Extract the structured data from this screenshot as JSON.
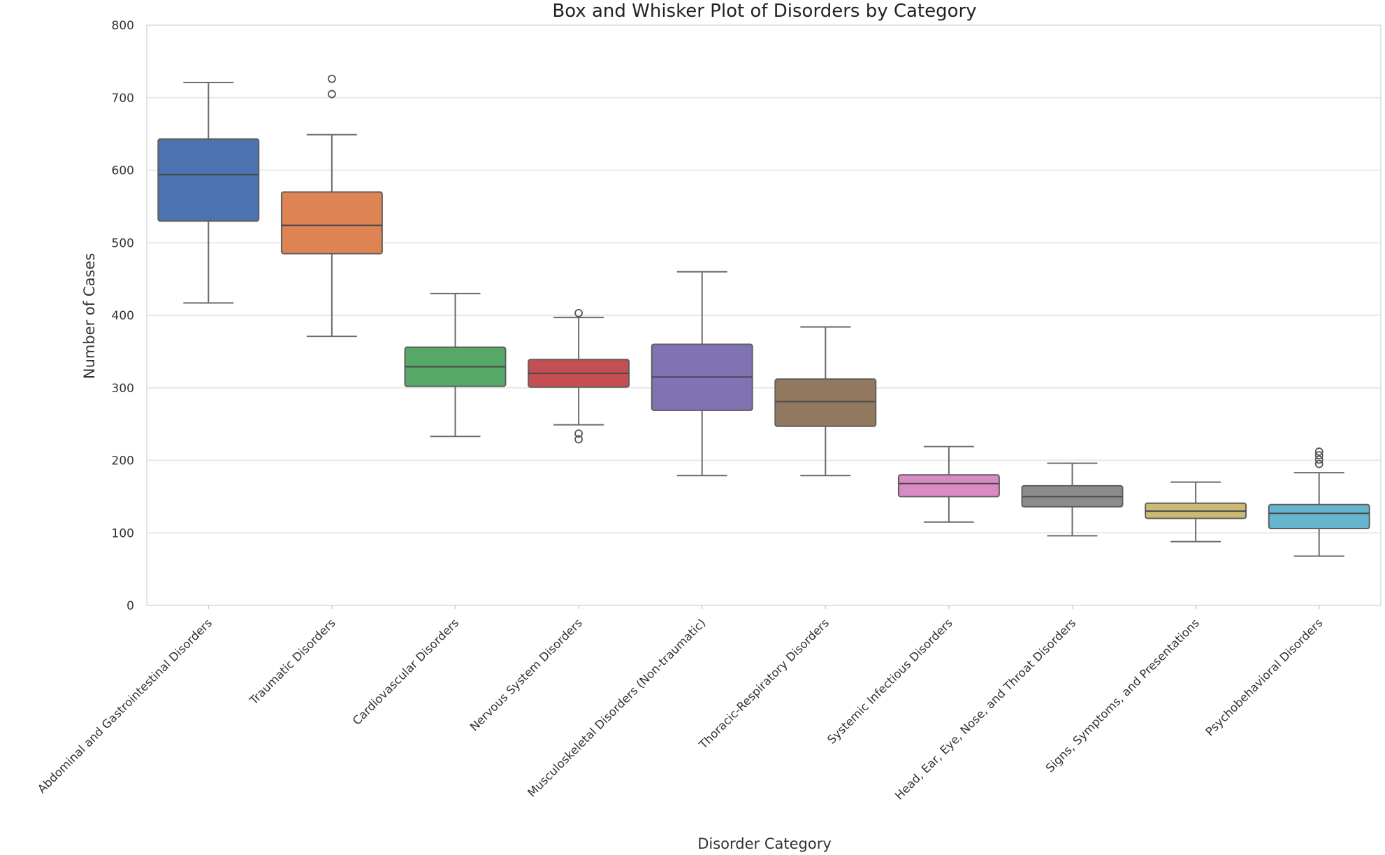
{
  "chart_data": {
    "type": "box",
    "title": "Box and Whisker Plot of Disorders by Category",
    "xlabel": "Disorder Category",
    "ylabel": "Number of Cases",
    "ylim": [
      0,
      800
    ],
    "yticks": [
      0,
      100,
      200,
      300,
      400,
      500,
      600,
      700,
      800
    ],
    "grid": true,
    "categories": [
      "Abdominal and Gastrointestinal Disorders",
      "Traumatic Disorders",
      "Cardiovascular Disorders",
      "Nervous System Disorders",
      "Musculoskeletal Disorders (Non-traumatic)",
      "Thoracic-Respiratory Disorders",
      "Systemic Infectious Disorders",
      "Head, Ear, Eye, Nose, and Throat Disorders",
      "Signs, Symptoms, and Presentations",
      "Psychobehavioral Disorders"
    ],
    "boxes": [
      {
        "whislo": 417,
        "q1": 530,
        "med": 594,
        "q3": 643,
        "whishi": 721,
        "fliers": [],
        "color": "#4c72b0"
      },
      {
        "whislo": 371,
        "q1": 485,
        "med": 524,
        "q3": 570,
        "whishi": 649,
        "fliers": [
          705,
          726
        ],
        "color": "#dd8452"
      },
      {
        "whislo": 233,
        "q1": 302,
        "med": 329,
        "q3": 356,
        "whishi": 430,
        "fliers": [],
        "color": "#55a868"
      },
      {
        "whislo": 249,
        "q1": 301,
        "med": 320,
        "q3": 339,
        "whishi": 397,
        "fliers": [
          403,
          237,
          229
        ],
        "color": "#c44e52"
      },
      {
        "whislo": 179,
        "q1": 269,
        "med": 315,
        "q3": 360,
        "whishi": 460,
        "fliers": [],
        "color": "#8172b3"
      },
      {
        "whislo": 179,
        "q1": 247,
        "med": 281,
        "q3": 312,
        "whishi": 384,
        "fliers": [],
        "color": "#937860"
      },
      {
        "whislo": 115,
        "q1": 150,
        "med": 168,
        "q3": 180,
        "whishi": 219,
        "fliers": [],
        "color": "#da8bc3"
      },
      {
        "whislo": 96,
        "q1": 136,
        "med": 150,
        "q3": 165,
        "whishi": 196,
        "fliers": [],
        "color": "#8c8c8c"
      },
      {
        "whislo": 88,
        "q1": 120,
        "med": 130,
        "q3": 141,
        "whishi": 170,
        "fliers": [],
        "color": "#ccb974"
      },
      {
        "whislo": 68,
        "q1": 106,
        "med": 127,
        "q3": 139,
        "whishi": 183,
        "fliers": [
          195,
          201,
          207,
          212
        ],
        "color": "#64b5cd"
      }
    ]
  }
}
